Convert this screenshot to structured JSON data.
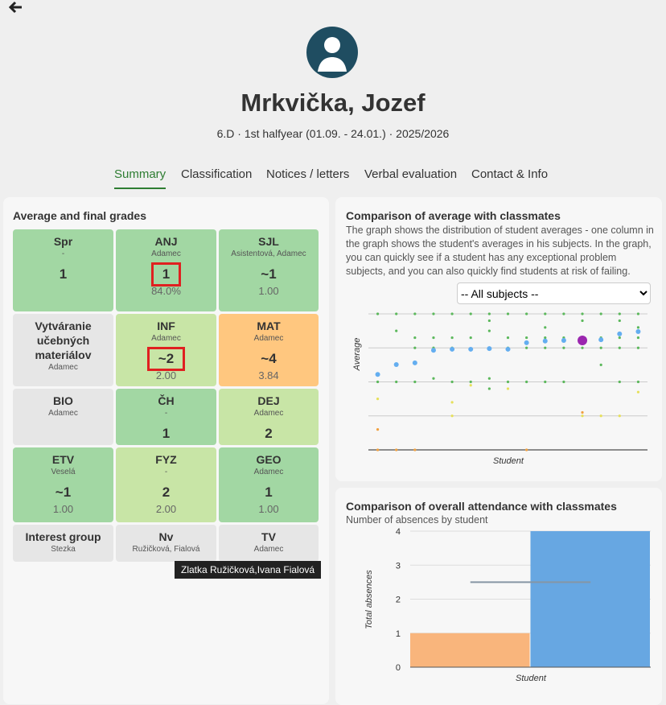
{
  "header": {
    "name": "Mrkvička, Jozef",
    "subtitle": "6.D · 1st halfyear (01.09. - 24.01.) · 2025/2026",
    "tabs": [
      "Summary",
      "Classification",
      "Notices / letters",
      "Verbal evaluation",
      "Contact & Info"
    ]
  },
  "grades": {
    "title": "Average and final grades",
    "tiles": [
      {
        "subject": "Spr",
        "teacher": "-",
        "grade": "1",
        "color": "#a2d7a3"
      },
      {
        "subject": "ANJ",
        "teacher": "Adamec",
        "grade": "1",
        "average": "84.0%",
        "color": "#a2d7a3",
        "highlight": true
      },
      {
        "subject": "SJL",
        "teacher": "Asistentová, Adamec",
        "grade": "~1",
        "average": "1.00",
        "color": "#a2d7a3"
      },
      {
        "subject": "Vytváranie učebných materiálov",
        "teacher": "Adamec",
        "color": "#e6e6e6"
      },
      {
        "subject": "INF",
        "teacher": "Adamec",
        "grade": "~2",
        "average": "2.00",
        "color": "#c8e5a6",
        "highlight": true
      },
      {
        "subject": "MAT",
        "teacher": "Adamec",
        "grade": "~4",
        "average": "3.84",
        "color": "#ffc77f"
      },
      {
        "subject": "BIO",
        "teacher": "Adamec",
        "color": "#e6e6e6"
      },
      {
        "subject": "ČH",
        "teacher": "-",
        "grade": "1",
        "color": "#a2d7a3"
      },
      {
        "subject": "DEJ",
        "teacher": "Adamec",
        "grade": "2",
        "color": "#c8e5a6"
      },
      {
        "subject": "ETV",
        "teacher": "Veselá",
        "grade": "~1",
        "average": "1.00",
        "color": "#a2d7a3"
      },
      {
        "subject": "FYZ",
        "teacher": "-",
        "grade": "2",
        "average": "2.00",
        "color": "#c8e5a6"
      },
      {
        "subject": "GEO",
        "teacher": "Adamec",
        "grade": "1",
        "average": "1.00",
        "color": "#a2d7a3"
      },
      {
        "subject": "Interest group",
        "teacher": "Stezka",
        "color": "#e6e6e6"
      },
      {
        "subject": "Nv",
        "teacher": "Ružičková, Fialová",
        "color": "#e6e6e6"
      },
      {
        "subject": "TV",
        "teacher": "Adamec",
        "color": "#e6e6e6"
      }
    ],
    "tooltip": "Zlatka Ružičková,Ivana Fialová"
  },
  "chart_data": [
    {
      "type": "scatter",
      "title": "Comparison of average with classmates",
      "subtitle": "The graph shows the distribution of student averages - one column in the graph shows the student's averages in his subjects. In the graph, you can quickly see if a student has any exceptional problem subjects, and you can also quickly find students at risk of failing.",
      "filter": "-- All subjects --",
      "xlabel": "Student",
      "ylabel": "Average",
      "xlim": [
        0.5,
        15.5
      ],
      "ylim": [
        5,
        1
      ],
      "yticks": [
        1,
        2,
        3,
        4,
        5
      ],
      "grid": true,
      "series": [
        {
          "color": "#5cb85c",
          "marker_size": 1.6,
          "x": [
            1,
            2,
            3,
            4,
            5,
            6,
            7,
            8,
            9,
            10,
            11,
            12,
            13,
            14,
            15,
            2,
            3,
            3,
            4,
            4,
            5,
            5,
            6,
            7,
            7,
            7,
            8,
            8,
            9,
            9,
            10,
            10,
            10,
            11,
            11,
            12,
            12,
            12,
            13,
            13,
            14,
            14,
            14,
            15,
            15,
            15,
            2,
            3,
            4,
            5,
            6,
            7,
            8,
            9,
            10,
            11,
            13,
            14,
            15,
            7,
            1
          ],
          "values": [
            1,
            1,
            1,
            1,
            1,
            1,
            1,
            1,
            1,
            1,
            1,
            1,
            1,
            1,
            1,
            1.5,
            1.7,
            2,
            1.7,
            2,
            1.7,
            2,
            1.7,
            1.2,
            1.5,
            2,
            1.7,
            2,
            1.7,
            2,
            1.4,
            1.7,
            2,
            1.7,
            2,
            1.7,
            2,
            1.2,
            1.7,
            2,
            1.2,
            1.7,
            2,
            1.4,
            1.7,
            2,
            3,
            3,
            2.9,
            3,
            3,
            2.9,
            3,
            3,
            3,
            3,
            2.5,
            3,
            3,
            3.2,
            3
          ]
        },
        {
          "color": "#e6e05a",
          "marker_size": 1.6,
          "x": [
            1,
            5,
            6,
            8,
            5,
            12,
            14,
            15,
            13
          ],
          "values": [
            3.5,
            3.6,
            3.1,
            3.2,
            4,
            4,
            4,
            3.3,
            4
          ]
        },
        {
          "color": "#f0a040",
          "marker_size": 1.6,
          "x": [
            1,
            1,
            2,
            3,
            9,
            12
          ],
          "values": [
            4.4,
            5,
            5,
            5,
            5,
            3.9
          ]
        },
        {
          "color": "#64aef0",
          "marker_size": 3,
          "x": [
            1,
            2,
            3,
            4,
            5,
            6,
            7,
            8,
            9,
            10,
            11,
            13,
            14,
            15
          ],
          "values": [
            2.78,
            2.49,
            2.44,
            2.07,
            2.04,
            2.04,
            2.02,
            2.04,
            1.85,
            1.8,
            1.78,
            1.76,
            1.59,
            1.52
          ]
        },
        {
          "color": "#9b27af",
          "marker_size": 6,
          "x": [
            12
          ],
          "values": [
            1.78
          ]
        }
      ]
    },
    {
      "type": "bar",
      "title": "Comparison of overall attendance with classmates",
      "subtitle": "Number of absences by student",
      "xlabel": "Student",
      "ylabel": "Total absences",
      "categories": [
        null
      ],
      "ylim": [
        0,
        4
      ],
      "yticks": [
        0,
        1,
        2,
        3,
        4
      ],
      "grid": true,
      "series": [
        {
          "color": "#f9b57c",
          "values": [
            1
          ]
        },
        {
          "color": "#67a7e2",
          "values": [
            4
          ]
        }
      ],
      "reference_line": {
        "value": 2.5,
        "color": "#8696a4"
      }
    }
  ]
}
